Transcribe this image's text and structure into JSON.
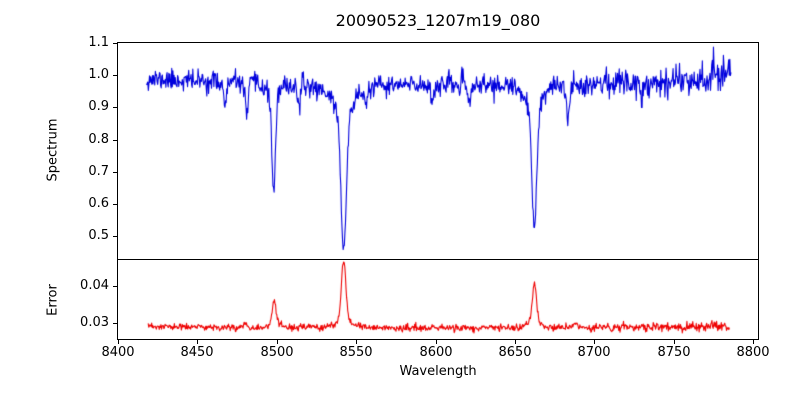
{
  "figure": {
    "background": "#ffffff",
    "axis_color": "#000000"
  },
  "chart_data": [
    {
      "type": "line",
      "title": "20090523_1207m19_080",
      "ylabel": "Spectrum",
      "xlabel": "",
      "line_color": "#0000dd",
      "xlim": [
        8400,
        8803
      ],
      "ylim": [
        0.43,
        1.1
      ],
      "yticks": [
        0.5,
        0.6,
        0.7,
        0.8,
        0.9,
        1.0,
        1.1
      ],
      "ytick_labels": [
        "0.5",
        "0.6",
        "0.7",
        "0.8",
        "0.9",
        "1.0",
        "1.1"
      ],
      "xticks": [
        8400,
        8450,
        8500,
        8550,
        8600,
        8650,
        8700,
        8750,
        8800
      ],
      "xtick_labels": [],
      "show_xtick_labels": false,
      "grid": false,
      "legend": null,
      "description": "Stellar spectrum with Ca II triplet absorption lines at 8498, 8542 and 8662 Angstroms; continuum near 1.0 with noise, line cores reaching 0.65, 0.46 and 0.52.",
      "series_model": {
        "seed": 11,
        "n_points": 1000,
        "x_start": 8418,
        "x_end": 8786,
        "continuum": {
          "base": 0.972,
          "curve_amp": 0.018,
          "curve_center": 8600,
          "curve_scale": 190,
          "edge_kick": {
            "amp": 0.03,
            "scale": 12
          }
        },
        "lines": [
          {
            "center": 8498.0,
            "core_depth": 0.26,
            "core_width": 1.1,
            "wing_depth": 0.07,
            "wing_width": 3.0
          },
          {
            "center": 8542.1,
            "core_depth": 0.4,
            "core_width": 1.6,
            "wing_depth": 0.12,
            "wing_width": 6.0
          },
          {
            "center": 8662.1,
            "core_depth": 0.35,
            "core_width": 1.5,
            "wing_depth": 0.1,
            "wing_width": 5.0
          },
          {
            "center": 8467.5,
            "core_depth": 0.07,
            "core_width": 1.0
          },
          {
            "center": 8481.0,
            "core_depth": 0.1,
            "core_width": 0.9
          },
          {
            "center": 8514.0,
            "core_depth": 0.06,
            "core_width": 0.9
          },
          {
            "center": 8556.0,
            "core_depth": 0.05,
            "core_width": 0.8
          },
          {
            "center": 8598.0,
            "core_depth": 0.05,
            "core_width": 0.8
          },
          {
            "center": 8621.0,
            "core_depth": 0.06,
            "core_width": 0.9
          },
          {
            "center": 8683.5,
            "core_depth": 0.1,
            "core_width": 1.0
          },
          {
            "center": 8730.0,
            "core_depth": 0.05,
            "core_width": 0.9
          }
        ],
        "noise": {
          "base_amp": 0.016,
          "extra_amp": 0.012,
          "extra_onset": 8680,
          "extra_ramp": 90,
          "core_floor": 0.3
        }
      }
    },
    {
      "type": "line",
      "title": "",
      "ylabel": "Error",
      "xlabel": "Wavelength",
      "line_color": "#ee0000",
      "xlim": [
        8400,
        8803
      ],
      "ylim": [
        0.0258,
        0.0468
      ],
      "yticks": [
        0.03,
        0.04
      ],
      "ytick_labels": [
        "0.03",
        "0.04"
      ],
      "xticks": [
        8400,
        8450,
        8500,
        8550,
        8600,
        8650,
        8700,
        8750,
        8800
      ],
      "xtick_labels": [
        "8400",
        "8450",
        "8500",
        "8550",
        "8600",
        "8650",
        "8700",
        "8750",
        "8800"
      ],
      "show_xtick_labels": true,
      "grid": false,
      "legend": null,
      "description": "Error spectrum, baseline near 0.029 with peaks at the Ca II line positions reaching about 0.036, 0.046 and 0.041.",
      "series_model": {
        "seed": 23,
        "n_points": 1000,
        "x_start": 8419,
        "x_end": 8785,
        "continuum": {
          "base": 0.0287,
          "curve_amp": 0.0004,
          "curve_center": 8600,
          "curve_scale": 190
        },
        "lines": [
          {
            "center": 8498.3,
            "core_depth": -0.006,
            "core_width": 1.2,
            "wing_depth": -0.001,
            "wing_width": 3.0
          },
          {
            "center": 8542.1,
            "core_depth": -0.0157,
            "core_width": 1.4,
            "wing_depth": -0.002,
            "wing_width": 5.0
          },
          {
            "center": 8662.2,
            "core_depth": -0.0103,
            "core_width": 1.3,
            "wing_depth": -0.0015,
            "wing_width": 4.0
          },
          {
            "center": 8480.5,
            "core_depth": -0.0012,
            "core_width": 1.0
          },
          {
            "center": 8688.0,
            "core_depth": -0.0012,
            "core_width": 1.0
          },
          {
            "center": 8730.0,
            "core_depth": -0.0006,
            "core_width": 1.0
          }
        ],
        "noise": {
          "base_amp": 0.00045,
          "extra_amp": 0.0002,
          "extra_onset": 8700,
          "extra_ramp": 90,
          "core_floor": 1
        }
      }
    }
  ]
}
